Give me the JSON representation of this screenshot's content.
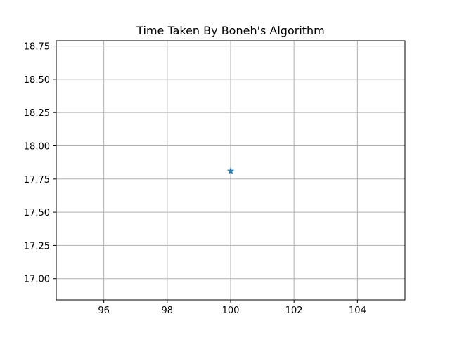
{
  "chart_data": {
    "type": "scatter",
    "title": "Time Taken By Boneh's Algorithm",
    "xlabel": "",
    "ylabel": "",
    "xlim": [
      94.5,
      105.5
    ],
    "ylim": [
      16.84,
      18.79
    ],
    "xticks": [
      96,
      98,
      100,
      102,
      104
    ],
    "xtick_labels": [
      "96",
      "98",
      "100",
      "102",
      "104"
    ],
    "yticks": [
      17.0,
      17.25,
      17.5,
      17.75,
      18.0,
      18.25,
      18.5,
      18.75
    ],
    "ytick_labels": [
      "17.00",
      "17.25",
      "17.50",
      "17.75",
      "18.00",
      "18.25",
      "18.50",
      "18.75"
    ],
    "grid": true,
    "marker": "star",
    "series": [
      {
        "color": "#1f77b4",
        "points": [
          {
            "x": 100,
            "y": 17.81
          }
        ]
      }
    ]
  }
}
